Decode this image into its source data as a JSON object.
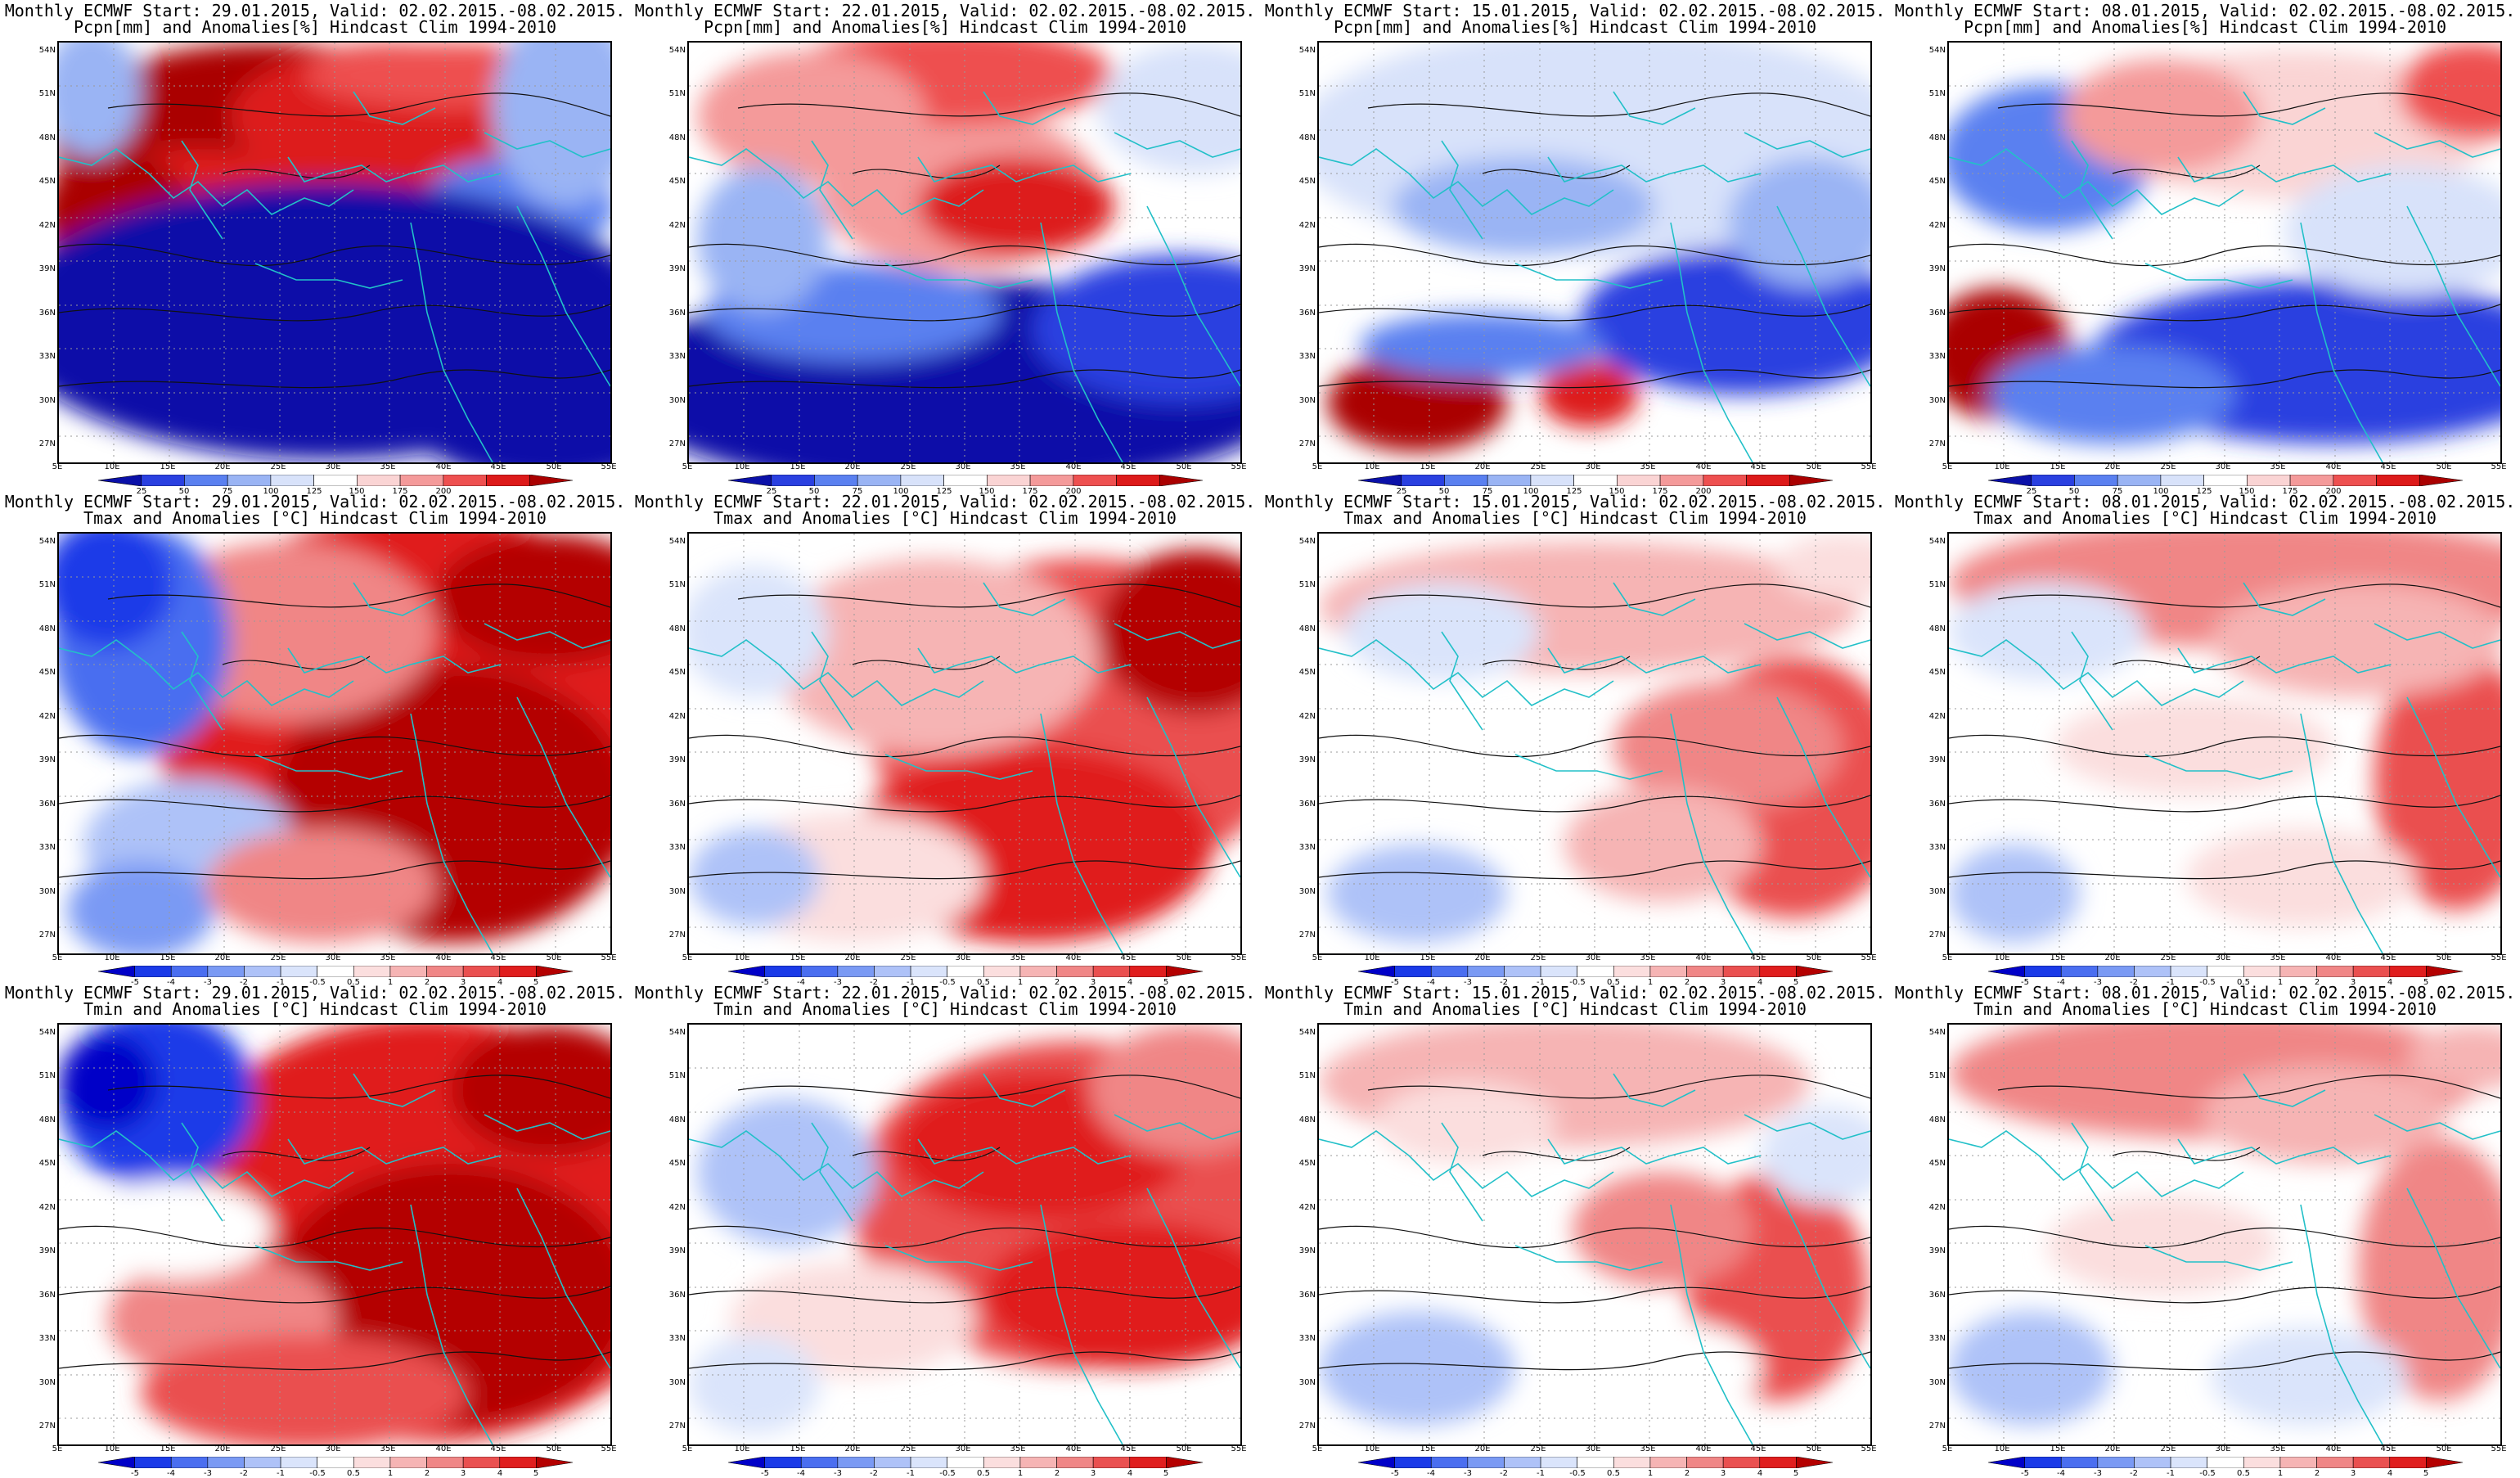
{
  "lat_labels": [
    "54N",
    "51N",
    "48N",
    "45N",
    "42N",
    "39N",
    "36N",
    "33N",
    "30N",
    "27N"
  ],
  "lon_labels": [
    "5E",
    "10E",
    "15E",
    "20E",
    "25E",
    "30E",
    "35E",
    "40E",
    "45E",
    "50E",
    "55E"
  ],
  "colorbars": {
    "precip": {
      "labels": [
        "25",
        "50",
        "75",
        "100",
        "125",
        "150",
        "175",
        "200"
      ],
      "colors": [
        "#0a10a8",
        "#2a40e0",
        "#5a80f0",
        "#9ab4f4",
        "#d8e2fa",
        "#ffffff",
        "#fad4d4",
        "#f49a9a",
        "#ee5050",
        "#dd1a1a",
        "#aa0000"
      ]
    },
    "temp": {
      "labels": [
        "-5",
        "-4",
        "-3",
        "-2",
        "-1",
        "-0.5",
        "0.5",
        "1",
        "2",
        "3",
        "4",
        "5"
      ],
      "colors": [
        "#0000c8",
        "#1a3ae8",
        "#4a6ef0",
        "#7a9af4",
        "#aec2f8",
        "#dae4fb",
        "#ffffff",
        "#fbdede",
        "#f6b4b4",
        "#f08686",
        "#ea5050",
        "#e01e1e",
        "#b40000"
      ]
    }
  },
  "panels": [
    {
      "title1": "Monthly ECMWF Start: 29.01.2015, Valid: 02.02.2015.-08.02.2015.",
      "title2": "Pcpn[mm] and Anomalies[%] Hindcast Clim 1994-2010",
      "type": "precip",
      "scheme": 0
    },
    {
      "title1": "Monthly ECMWF Start: 22.01.2015, Valid: 02.02.2015.-08.02.2015.",
      "title2": "Pcpn[mm] and Anomalies[%] Hindcast Clim 1994-2010",
      "type": "precip",
      "scheme": 1
    },
    {
      "title1": "Monthly ECMWF Start: 15.01.2015, Valid: 02.02.2015.-08.02.2015.",
      "title2": "Pcpn[mm] and Anomalies[%] Hindcast Clim 1994-2010",
      "type": "precip",
      "scheme": 2
    },
    {
      "title1": "Monthly ECMWF Start: 08.01.2015, Valid: 02.02.2015.-08.02.2015.",
      "title2": "Pcpn[mm] and Anomalies[%] Hindcast Clim 1994-2010",
      "type": "precip",
      "scheme": 3
    },
    {
      "title1": "Monthly ECMWF Start: 29.01.2015, Valid: 02.02.2015.-08.02.2015.",
      "title2": "Tmax and Anomalies [°C] Hindcast Clim 1994-2010",
      "type": "temp",
      "scheme": 4
    },
    {
      "title1": "Monthly ECMWF Start: 22.01.2015, Valid: 02.02.2015.-08.02.2015.",
      "title2": "Tmax and Anomalies [°C] Hindcast Clim 1994-2010",
      "type": "temp",
      "scheme": 5
    },
    {
      "title1": "Monthly ECMWF Start: 15.01.2015, Valid: 02.02.2015.-08.02.2015.",
      "title2": "Tmax and Anomalies [°C] Hindcast Clim 1994-2010",
      "type": "temp",
      "scheme": 6
    },
    {
      "title1": "Monthly ECMWF Start: 08.01.2015, Valid: 02.02.2015.-08.02.2015.",
      "title2": "Tmax and Anomalies [°C] Hindcast Clim 1994-2010",
      "type": "temp",
      "scheme": 7
    },
    {
      "title1": "Monthly ECMWF Start: 29.01.2015, Valid: 02.02.2015.-08.02.2015.",
      "title2": "Tmin and Anomalies [°C] Hindcast Clim 1994-2010",
      "type": "temp",
      "scheme": 8
    },
    {
      "title1": "Monthly ECMWF Start: 22.01.2015, Valid: 02.02.2015.-08.02.2015.",
      "title2": "Tmin and Anomalies [°C] Hindcast Clim 1994-2010",
      "type": "temp",
      "scheme": 9
    },
    {
      "title1": "Monthly ECMWF Start: 15.01.2015, Valid: 02.02.2015.-08.02.2015.",
      "title2": "Tmin and Anomalies [°C] Hindcast Clim 1994-2010",
      "type": "temp",
      "scheme": 10
    },
    {
      "title1": "Monthly ECMWF Start: 08.01.2015, Valid: 02.02.2015.-08.02.2015.",
      "title2": "Tmin and Anomalies [°C] Hindcast Clim 1994-2010",
      "type": "temp",
      "scheme": 11
    }
  ]
}
